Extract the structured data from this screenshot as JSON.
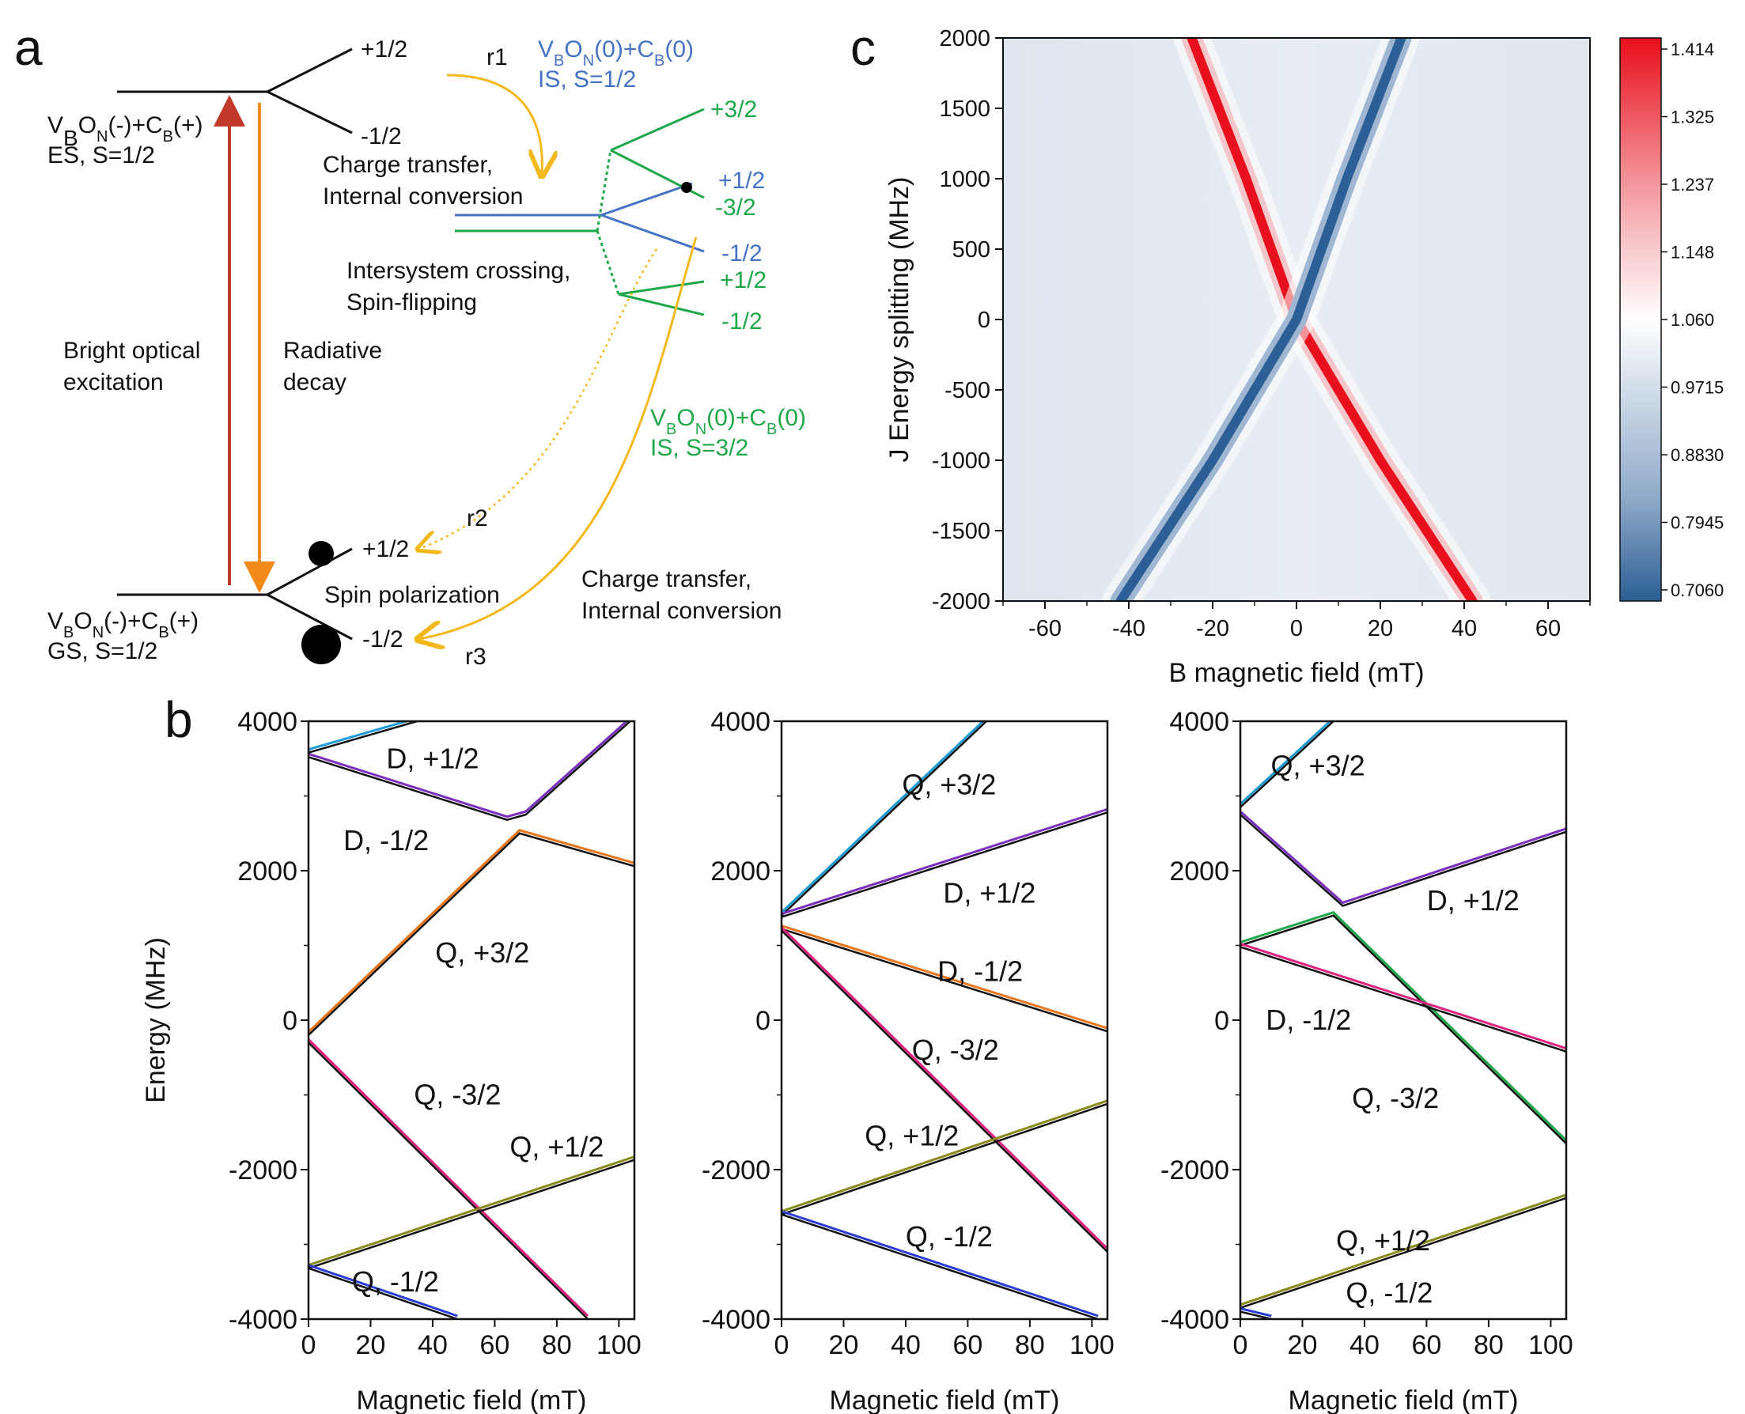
{
  "panel_labels": {
    "a": "a",
    "b": "b",
    "c": "c"
  },
  "panel_a": {
    "es_state": {
      "line1": "VBON(-)+CB(+)",
      "line1_parts": [
        "V",
        "B",
        "O",
        "N",
        "(-)+C",
        "B",
        "(+)"
      ],
      "line2": "ES, S=1/2"
    },
    "gs_state": {
      "line1_parts": [
        "V",
        "B",
        "O",
        "N",
        "(-)+C",
        "B",
        "(+)"
      ],
      "line2": "GS, S=1/2"
    },
    "is_half": {
      "line1_parts": [
        "V",
        "B",
        "O",
        "N",
        "(0)+C",
        "B",
        "(0)"
      ],
      "line2": "IS, S=1/2"
    },
    "is_three_half": {
      "line1_parts": [
        "V",
        "B",
        "O",
        "N",
        "(0)+C",
        "B",
        "(0)"
      ],
      "line2": "IS, S=3/2"
    },
    "es_levels": [
      "+1/2",
      "-1/2"
    ],
    "gs_levels": [
      "+1/2",
      "-1/2"
    ],
    "is_levels_green": [
      "+3/2",
      "-3/2",
      "+1/2",
      "-1/2"
    ],
    "is_levels_blue": [
      "+1/2",
      "-1/2"
    ],
    "rates": [
      "r1",
      "r2",
      "r3"
    ],
    "process_labels": {
      "excitation": [
        "Bright optical",
        "excitation"
      ],
      "decay": [
        "Radiative",
        "decay"
      ],
      "ct_ic_1": [
        "Charge transfer,",
        "Internal conversion"
      ],
      "isc": [
        "Intersystem crossing,",
        "Spin-flipping"
      ],
      "ct_ic_2": [
        "Charge transfer,",
        "Internal conversion"
      ],
      "spin_pol": "Spin polarization"
    },
    "colors": {
      "excitation": "#c0392b",
      "decay": "#f28a1a",
      "rate": "#f3b81b",
      "blue": "#4472c4",
      "green": "#1ea84a"
    }
  },
  "chart_data": [
    {
      "id": "b1",
      "type": "line",
      "xlabel": "Magnetic field (mT)",
      "ylabel": "Energy (MHz)",
      "xlim": [
        0,
        105
      ],
      "ylim": [
        -4000,
        4000
      ],
      "xticks": [
        0,
        20,
        40,
        60,
        80,
        100
      ],
      "yticks": [
        4000,
        2000,
        0,
        -2000,
        -4000
      ],
      "series": [
        {
          "name": "D, +1/2 upper",
          "color": "#7b2fbe",
          "points": [
            [
              0,
              3520
            ],
            [
              64,
              2680
            ],
            [
              70,
              2750
            ],
            [
              105,
              4050
            ]
          ]
        },
        {
          "name": "D, -1/2",
          "color": "#e8751a",
          "points": [
            [
              0,
              -200
            ],
            [
              68,
              2500
            ],
            [
              105,
              2060
            ]
          ]
        },
        {
          "name": "Q, -3/2",
          "color": "#e0227f",
          "points": [
            [
              0,
              -300
            ],
            [
              90,
              -4000
            ]
          ]
        },
        {
          "name": "Q, +1/2",
          "color": "#8a8a1a",
          "points": [
            [
              0,
              -3320
            ],
            [
              105,
              -1870
            ]
          ]
        },
        {
          "name": "Q, -1/2",
          "color": "#2b3bd6",
          "points": [
            [
              0,
              -3320
            ],
            [
              48,
              -4000
            ]
          ]
        },
        {
          "name": "Q, +3/2",
          "color": "#1f9bd6",
          "points": [
            [
              0,
              3580
            ],
            [
              35,
              4000
            ]
          ]
        }
      ],
      "annotations": [
        {
          "text": "D, +1/2",
          "x": 40,
          "y": 3500
        },
        {
          "text": "D, -1/2",
          "x": 25,
          "y": 2400
        },
        {
          "text": "Q, +3/2",
          "x": 56,
          "y": 900
        },
        {
          "text": "Q, -3/2",
          "x": 48,
          "y": -1000
        },
        {
          "text": "Q, +1/2",
          "x": 80,
          "y": -1700
        },
        {
          "text": "Q, -1/2",
          "x": 28,
          "y": -3500
        }
      ]
    },
    {
      "id": "b2",
      "type": "line",
      "xlabel": "Magnetic field (mT)",
      "ylabel": "",
      "xlim": [
        0,
        105
      ],
      "ylim": [
        -4000,
        4000
      ],
      "xticks": [
        0,
        20,
        40,
        60,
        80,
        100
      ],
      "yticks": [
        4000,
        2000,
        0,
        -2000,
        -4000
      ],
      "series": [
        {
          "name": "Q, +3/2",
          "color": "#1f9bd6",
          "points": [
            [
              0,
              1400
            ],
            [
              66,
              4000
            ]
          ]
        },
        {
          "name": "D, +1/2",
          "color": "#7b2fbe",
          "points": [
            [
              0,
              1380
            ],
            [
              105,
              2780
            ]
          ]
        },
        {
          "name": "D, -1/2",
          "color": "#e8751a",
          "points": [
            [
              0,
              1220
            ],
            [
              105,
              -150
            ]
          ]
        },
        {
          "name": "Q, -3/2",
          "color": "#e0227f",
          "points": [
            [
              0,
              1200
            ],
            [
              105,
              -3100
            ]
          ]
        },
        {
          "name": "Q, +1/2",
          "color": "#8a8a1a",
          "points": [
            [
              0,
              -2600
            ],
            [
              105,
              -1120
            ]
          ]
        },
        {
          "name": "Q, -1/2",
          "color": "#2b3bd6",
          "points": [
            [
              0,
              -2600
            ],
            [
              102,
              -4000
            ]
          ]
        }
      ],
      "annotations": [
        {
          "text": "Q, +3/2",
          "x": 54,
          "y": 3150
        },
        {
          "text": "D, +1/2",
          "x": 67,
          "y": 1700
        },
        {
          "text": "D, -1/2",
          "x": 64,
          "y": 650
        },
        {
          "text": "Q, -3/2",
          "x": 56,
          "y": -400
        },
        {
          "text": "Q, +1/2",
          "x": 42,
          "y": -1550
        },
        {
          "text": "Q, -1/2",
          "x": 54,
          "y": -2900
        }
      ]
    },
    {
      "id": "b3",
      "type": "line",
      "xlabel": "Magnetic field (mT)",
      "ylabel": "",
      "xlim": [
        0,
        105
      ],
      "ylim": [
        -4000,
        4000
      ],
      "xticks": [
        0,
        20,
        40,
        60,
        80,
        100
      ],
      "yticks": [
        4000,
        2000,
        0,
        -2000,
        -4000
      ],
      "series": [
        {
          "name": "Q, +3/2",
          "color": "#1f9bd6",
          "points": [
            [
              0,
              2850
            ],
            [
              30,
              4000
            ]
          ]
        },
        {
          "name": "D, +1/2",
          "color": "#7b2fbe",
          "points": [
            [
              0,
              2750
            ],
            [
              33,
              1530
            ],
            [
              105,
              2520
            ]
          ]
        },
        {
          "name": "Q, +3/2b",
          "color": "#1ea84a",
          "points": [
            [
              0,
              1000
            ],
            [
              30,
              1400
            ],
            [
              105,
              -1650
            ]
          ]
        },
        {
          "name": "D, -1/2",
          "color": "#e0227f",
          "points": [
            [
              0,
              980
            ],
            [
              105,
              -420
            ]
          ]
        },
        {
          "name": "Q, +1/2",
          "color": "#8a8a1a",
          "points": [
            [
              0,
              -3850
            ],
            [
              105,
              -2380
            ]
          ]
        },
        {
          "name": "Q, -1/2",
          "color": "#2b3bd6",
          "points": [
            [
              0,
              -3900
            ],
            [
              10,
              -4000
            ]
          ]
        }
      ],
      "annotations": [
        {
          "text": "Q, +3/2",
          "x": 25,
          "y": 3400
        },
        {
          "text": "D, +1/2",
          "x": 75,
          "y": 1600
        },
        {
          "text": "D, -1/2",
          "x": 22,
          "y": 0
        },
        {
          "text": "Q, -3/2",
          "x": 50,
          "y": -1050
        },
        {
          "text": "Q, +1/2",
          "x": 46,
          "y": -2950
        },
        {
          "text": "Q, -1/2",
          "x": 48,
          "y": -3650
        }
      ]
    },
    {
      "id": "c",
      "type": "heatmap",
      "xlabel": "B magnetic field (mT)",
      "ylabel": "J Energy splitting (MHz)",
      "xlim": [
        -70,
        70
      ],
      "ylim": [
        -2000,
        2000
      ],
      "xticks": [
        -60,
        -40,
        -20,
        0,
        20,
        40,
        60
      ],
      "yticks": [
        2000,
        1500,
        1000,
        500,
        0,
        -500,
        -1000,
        -1500,
        -2000
      ],
      "colorbar": {
        "ticks": [
          "1.414",
          "1.325",
          "1.237",
          "1.148",
          "1.060",
          "0.9715",
          "0.8830",
          "0.7945",
          "0.7060"
        ],
        "min": 0.706,
        "max": 1.414
      },
      "features": [
        {
          "name": "red ridge",
          "color": "#e8101c",
          "points": [
            [
              -25,
              2000
            ],
            [
              -12,
              1000
            ],
            [
              0,
              0
            ],
            [
              20,
              -1000
            ],
            [
              42,
              -2000
            ]
          ]
        },
        {
          "name": "blue valley",
          "color": "#2b5f95",
          "points": [
            [
              25,
              2000
            ],
            [
              12,
              1000
            ],
            [
              0,
              0
            ],
            [
              -20,
              -1000
            ],
            [
              -42,
              -2000
            ]
          ]
        }
      ]
    }
  ]
}
